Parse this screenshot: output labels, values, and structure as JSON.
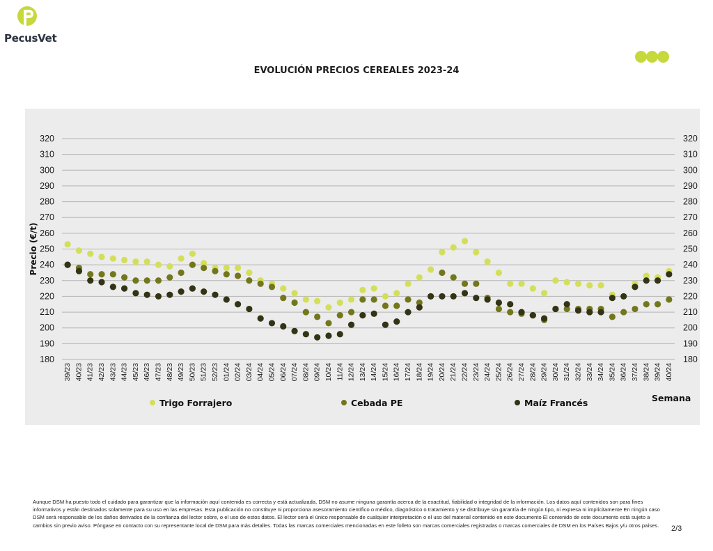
{
  "brand": {
    "name": "PecusVet",
    "logo_color": "#c7d83a",
    "text_color": "#2c3340"
  },
  "header": {
    "dots_color": "#c7d83a"
  },
  "chart_data": {
    "type": "scatter",
    "title": "EVOLUCIÓN PRECIOS CEREALES 2023-24",
    "ylabel": "Precio (€/t)",
    "xlabel": "Semana",
    "ylim": [
      180,
      320
    ],
    "yticks": [
      180,
      190,
      200,
      210,
      220,
      230,
      240,
      250,
      260,
      270,
      280,
      290,
      300,
      310,
      320
    ],
    "grid": true,
    "legend_position": "bottom",
    "categories": [
      "39/23",
      "40/23",
      "41/23",
      "42/23",
      "43/23",
      "44/23",
      "45/23",
      "46/23",
      "47/23",
      "48/23",
      "49/23",
      "50/23",
      "51/23",
      "52/23",
      "01/24",
      "02/24",
      "03/24",
      "04/24",
      "05/24",
      "06/24",
      "07/24",
      "08/24",
      "09/24",
      "10/24",
      "11/24",
      "12/24",
      "13/24",
      "14/24",
      "15/24",
      "16/24",
      "17/24",
      "18/24",
      "19/24",
      "20/24",
      "21/24",
      "22/24",
      "23/24",
      "24/24",
      "25/24",
      "26/24",
      "27/24",
      "28/24",
      "29/24",
      "30/24",
      "31/24",
      "32/24",
      "33/24",
      "34/24",
      "35/24",
      "36/24",
      "37/24",
      "38/24",
      "39/24",
      "40/24"
    ],
    "series": [
      {
        "name": "Trigo Forrajero",
        "color": "#d3df5a",
        "values": [
          253,
          249,
          247,
          245,
          244,
          243,
          242,
          242,
          240,
          239,
          244,
          247,
          241,
          238,
          238,
          238,
          235,
          230,
          228,
          225,
          222,
          218,
          217,
          213,
          216,
          218,
          224,
          225,
          220,
          222,
          228,
          232,
          237,
          248,
          251,
          255,
          248,
          242,
          235,
          228,
          228,
          225,
          222,
          230,
          229,
          228,
          227,
          227,
          221,
          220,
          228,
          233,
          232,
          236
        ]
      },
      {
        "name": "Cebada PE",
        "color": "#73771c",
        "values": [
          240,
          238,
          234,
          234,
          234,
          232,
          230,
          230,
          230,
          232,
          235,
          240,
          238,
          236,
          234,
          233,
          230,
          228,
          226,
          219,
          216,
          210,
          207,
          203,
          208,
          210,
          218,
          218,
          214,
          214,
          218,
          216,
          220,
          235,
          232,
          228,
          228,
          219,
          212,
          210,
          209,
          208,
          205,
          212,
          212,
          212,
          212,
          212,
          207,
          210,
          212,
          215,
          215,
          218
        ]
      },
      {
        "name": "Maíz Francés",
        "color": "#333316",
        "values": [
          240,
          236,
          230,
          229,
          226,
          225,
          222,
          221,
          220,
          221,
          223,
          225,
          223,
          221,
          218,
          215,
          212,
          206,
          203,
          201,
          198,
          196,
          194,
          195,
          196,
          202,
          208,
          209,
          202,
          204,
          210,
          213,
          220,
          220,
          220,
          222,
          219,
          218,
          216,
          215,
          210,
          208,
          206,
          212,
          215,
          211,
          210,
          210,
          219,
          220,
          226,
          230,
          230,
          234
        ]
      }
    ]
  },
  "footer": {
    "disclaimer": "Aunque DSM ha puesto todo el cuidado para garantizar que la información aquí contenida es correcta y está actualizada, DSM no asume ninguna garantía acerca de la exactitud, fiabilidad o integridad de la información. Los datos aquí contenidos son para fines informativos y están destinados solamente para su uso en las empresas. Esta publicación no constituye ni proporciona asesoramiento científico o médico, diagnóstico o tratamiento y se distribuye sin garantía de ningún tipo, ni expresa ni implícitamente En ningún caso DSM será responsable de los daños derivados de la confianza del lector sobre, o el uso de estos datos. El lector será el único responsable de cualquier interpretación o el uso del material contenido en este documento El contenido de este documento está sujeto a cambios sin previo aviso. Póngase en contacto con su representante local de DSM para más detalles. Todas las marcas comerciales mencionadas en este folleto son marcas comerciales registradas o marcas comerciales de DSM en los Países Bajos y/u otros países.",
    "page": "2/3"
  }
}
